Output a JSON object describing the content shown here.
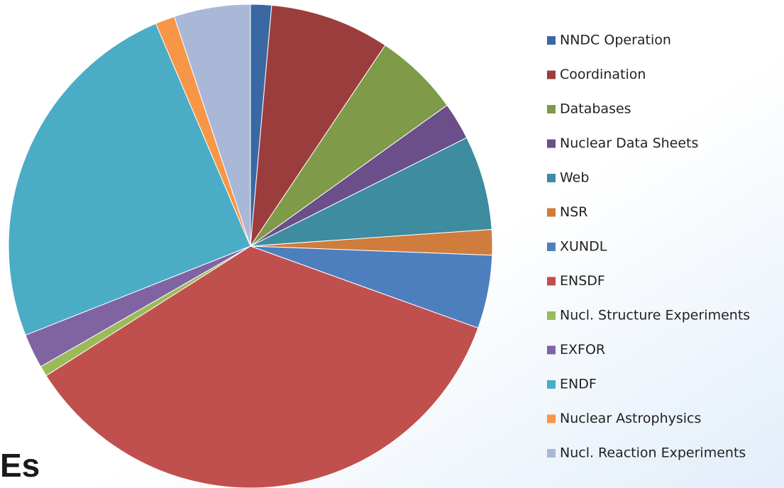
{
  "chart_data": {
    "type": "pie",
    "categories": [
      "NNDC Operation",
      "Coordination",
      "Databases",
      "Nuclear Data Sheets",
      "Web",
      "NSR",
      "XUNDL",
      "ENSDF",
      "Nucl. Structure Experiments",
      "EXFOR",
      "ENDF",
      "Nuclear Astrophysics",
      "Nucl. Reaction Experiments"
    ],
    "values": [
      1.4,
      8,
      5.7,
      2.5,
      6.3,
      1.7,
      4.9,
      35.5,
      0.7,
      2.3,
      24.6,
      1.3,
      5.1
    ],
    "colors": [
      "#3a68a3",
      "#9c3d3d",
      "#7f9a48",
      "#6a4f8a",
      "#3d8ca0",
      "#d07c3c",
      "#4d7fbf",
      "#c0504d",
      "#9bbb59",
      "#8064a2",
      "#4bacc6",
      "#f79646",
      "#aab8d8"
    ],
    "legend": "right",
    "annotation": "Es"
  }
}
